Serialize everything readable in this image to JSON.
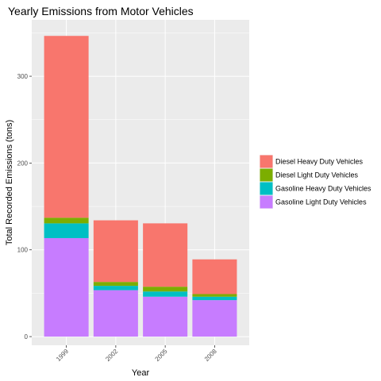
{
  "chart_data": {
    "type": "bar",
    "stacked": true,
    "title": "Yearly Emissions from Motor Vehicles",
    "xlabel": "Year",
    "ylabel": "Total Recorded Emissions (tons)",
    "categories": [
      "1999",
      "2002",
      "2005",
      "2008"
    ],
    "ylim": [
      -10,
      365
    ],
    "yticks": [
      0,
      100,
      200,
      300
    ],
    "grid": true,
    "legend_position": "right",
    "panel_background": "#ebebeb",
    "series": [
      {
        "name": "Gasoline Light Duty Vehicles",
        "color": "#C77CFF",
        "values": [
          113.5,
          53.5,
          46,
          42
        ]
      },
      {
        "name": "Gasoline Heavy Duty Vehicles",
        "color": "#00BFC4",
        "values": [
          17,
          5,
          6,
          4
        ]
      },
      {
        "name": "Diesel Light Duty Vehicles",
        "color": "#7CAE00",
        "values": [
          6.5,
          4.5,
          5.5,
          3
        ]
      },
      {
        "name": "Diesel Heavy Duty Vehicles",
        "color": "#F8766D",
        "values": [
          209.5,
          71,
          73,
          40
        ]
      }
    ],
    "legend_order": [
      "Diesel Heavy Duty Vehicles",
      "Diesel Light Duty Vehicles",
      "Gasoline Heavy Duty Vehicles",
      "Gasoline Light Duty Vehicles"
    ]
  }
}
